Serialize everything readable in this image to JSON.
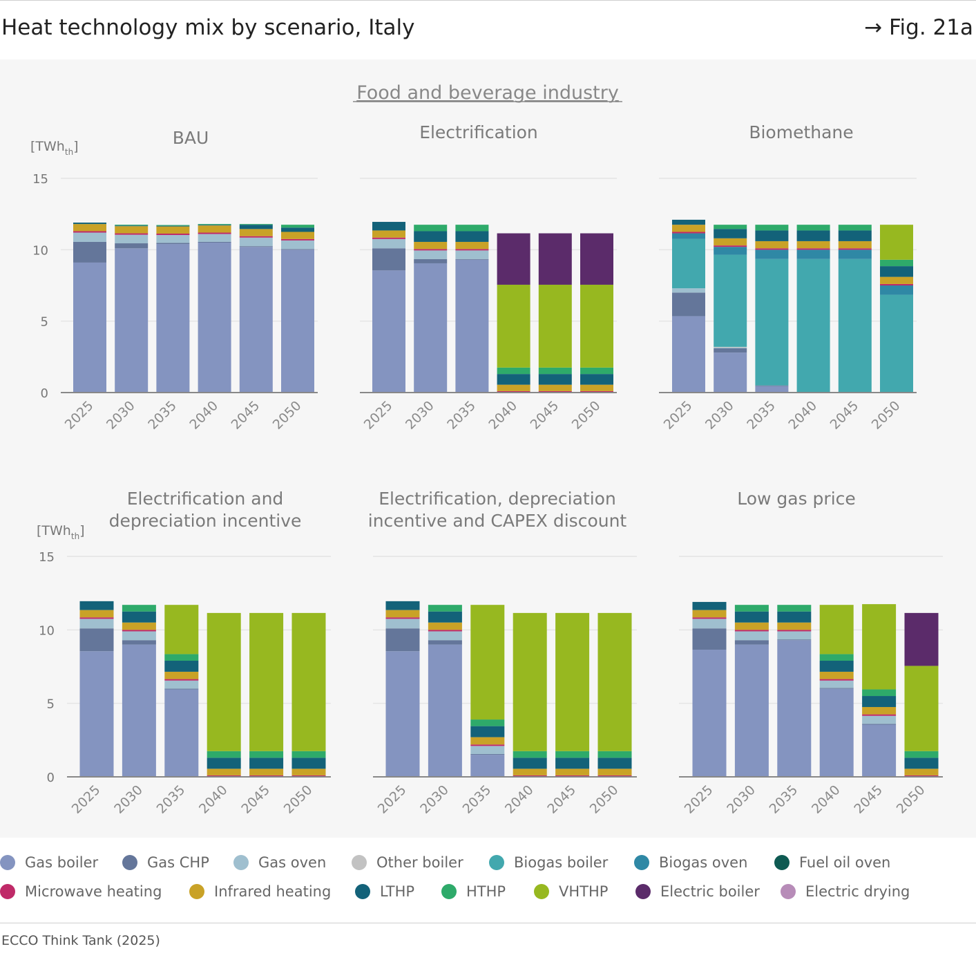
{
  "header": {
    "title": "Heat technology mix by scenario, Italy",
    "fig_label": "→ Fig. 21a"
  },
  "source": "ECCO Think Tank (2025)",
  "chart_data": {
    "type": "bar",
    "stacked": true,
    "section_title": "Food and beverage industry",
    "unit_label": "[TWh",
    "unit_sub": "th",
    "unit_close": "]",
    "ylim": [
      0,
      15
    ],
    "yticks": [
      0,
      5,
      10,
      15
    ],
    "categories": [
      "2025",
      "2030",
      "2035",
      "2040",
      "2045",
      "2050"
    ],
    "technologies": [
      {
        "name": "Gas boiler",
        "color": "#8494c0"
      },
      {
        "name": "Gas CHP",
        "color": "#64769a"
      },
      {
        "name": "Gas oven",
        "color": "#9fbfcf"
      },
      {
        "name": "Other boiler",
        "color": "#c2c2c2"
      },
      {
        "name": "Biogas boiler",
        "color": "#42a8ae"
      },
      {
        "name": "Biogas oven",
        "color": "#2f88a5"
      },
      {
        "name": "Fuel oil oven",
        "color": "#0e5a52"
      },
      {
        "name": "Microwave heating",
        "color": "#bf2a68"
      },
      {
        "name": "Infrared heating",
        "color": "#c9a227"
      },
      {
        "name": "LTHP",
        "color": "#136279"
      },
      {
        "name": "HTHP",
        "color": "#2eaa6a"
      },
      {
        "name": "VHTHP",
        "color": "#97b820"
      },
      {
        "name": "Electric boiler",
        "color": "#5b2b6a"
      },
      {
        "name": "Electric drying",
        "color": "#b78cb8"
      }
    ],
    "charts": [
      {
        "title": [
          "BAU"
        ],
        "series": [
          {
            "name": "Gas boiler",
            "values": [
              9.1,
              10.1,
              10.4,
              10.5,
              10.2,
              10.0
            ]
          },
          {
            "name": "Gas CHP",
            "values": [
              1.45,
              0.35,
              0.08,
              0.05,
              0.05,
              0.05
            ]
          },
          {
            "name": "Gas oven",
            "values": [
              0.65,
              0.6,
              0.55,
              0.55,
              0.6,
              0.6
            ]
          },
          {
            "name": "Other boiler",
            "values": [
              0,
              0,
              0,
              0,
              0,
              0
            ]
          },
          {
            "name": "Biogas boiler",
            "values": [
              0,
              0,
              0,
              0,
              0,
              0
            ]
          },
          {
            "name": "Biogas oven",
            "values": [
              0,
              0,
              0,
              0,
              0,
              0
            ]
          },
          {
            "name": "Fuel oil oven",
            "values": [
              0,
              0,
              0,
              0,
              0,
              0
            ]
          },
          {
            "name": "Microwave heating",
            "values": [
              0.1,
              0.1,
              0.1,
              0.1,
              0.1,
              0.1
            ]
          },
          {
            "name": "Infrared heating",
            "values": [
              0.5,
              0.5,
              0.5,
              0.5,
              0.5,
              0.5
            ]
          },
          {
            "name": "LTHP",
            "values": [
              0.1,
              0.05,
              0.05,
              0.05,
              0.3,
              0.3
            ]
          },
          {
            "name": "HTHP",
            "values": [
              0,
              0.05,
              0.05,
              0.05,
              0.05,
              0.2
            ]
          },
          {
            "name": "VHTHP",
            "values": [
              0,
              0,
              0,
              0,
              0,
              0
            ]
          },
          {
            "name": "Electric boiler",
            "values": [
              0,
              0,
              0,
              0,
              0,
              0
            ]
          },
          {
            "name": "Electric drying",
            "values": [
              0,
              0,
              0,
              0,
              0,
              0
            ]
          }
        ]
      },
      {
        "title": [
          "Electrification"
        ],
        "series": [
          {
            "name": "Gas boiler",
            "values": [
              8.55,
              9.05,
              9.3,
              0,
              0,
              0
            ]
          },
          {
            "name": "Gas CHP",
            "values": [
              1.55,
              0.3,
              0.05,
              0,
              0,
              0
            ]
          },
          {
            "name": "Gas oven",
            "values": [
              0.65,
              0.6,
              0.6,
              0,
              0,
              0
            ]
          },
          {
            "name": "Other boiler",
            "values": [
              0,
              0,
              0,
              0,
              0,
              0
            ]
          },
          {
            "name": "Biogas boiler",
            "values": [
              0,
              0,
              0,
              0,
              0,
              0
            ]
          },
          {
            "name": "Biogas oven",
            "values": [
              0,
              0,
              0,
              0,
              0,
              0
            ]
          },
          {
            "name": "Fuel oil oven",
            "values": [
              0,
              0,
              0,
              0,
              0,
              0
            ]
          },
          {
            "name": "Microwave heating",
            "values": [
              0.1,
              0.1,
              0.1,
              0.1,
              0.1,
              0.1
            ]
          },
          {
            "name": "Infrared heating",
            "values": [
              0.5,
              0.5,
              0.5,
              0.45,
              0.45,
              0.45
            ]
          },
          {
            "name": "LTHP",
            "values": [
              0.6,
              0.75,
              0.75,
              0.75,
              0.75,
              0.75
            ]
          },
          {
            "name": "HTHP",
            "values": [
              0,
              0.45,
              0.45,
              0.45,
              0.45,
              0.45
            ]
          },
          {
            "name": "VHTHP",
            "values": [
              0,
              0,
              0,
              5.8,
              5.8,
              5.8
            ]
          },
          {
            "name": "Electric boiler",
            "values": [
              0,
              0,
              0,
              3.6,
              3.6,
              3.6
            ]
          },
          {
            "name": "Electric drying",
            "values": [
              0,
              0,
              0,
              0,
              0,
              0
            ]
          }
        ]
      },
      {
        "title": [
          "Biomethane"
        ],
        "series": [
          {
            "name": "Gas boiler",
            "values": [
              5.35,
              2.8,
              0.45,
              0,
              0,
              0
            ]
          },
          {
            "name": "Gas CHP",
            "values": [
              1.65,
              0.3,
              0.05,
              0,
              0,
              0
            ]
          },
          {
            "name": "Gas oven",
            "values": [
              0.3,
              0.05,
              0,
              0,
              0,
              0
            ]
          },
          {
            "name": "Other boiler",
            "values": [
              0,
              0.05,
              0,
              0,
              0,
              0
            ]
          },
          {
            "name": "Biogas boiler",
            "values": [
              3.45,
              6.45,
              8.85,
              9.35,
              9.35,
              6.85
            ]
          },
          {
            "name": "Biogas oven",
            "values": [
              0.4,
              0.55,
              0.65,
              0.65,
              0.65,
              0.65
            ]
          },
          {
            "name": "Fuel oil oven",
            "values": [
              0,
              0,
              0,
              0,
              0,
              0
            ]
          },
          {
            "name": "Microwave heating",
            "values": [
              0.1,
              0.1,
              0.1,
              0.1,
              0.1,
              0.1
            ]
          },
          {
            "name": "Infrared heating",
            "values": [
              0.5,
              0.5,
              0.5,
              0.5,
              0.5,
              0.5
            ]
          },
          {
            "name": "LTHP",
            "values": [
              0.35,
              0.65,
              0.75,
              0.75,
              0.75,
              0.75
            ]
          },
          {
            "name": "HTHP",
            "values": [
              0,
              0.3,
              0.4,
              0.4,
              0.4,
              0.45
            ]
          },
          {
            "name": "VHTHP",
            "values": [
              0,
              0,
              0,
              0,
              0,
              2.45
            ]
          },
          {
            "name": "Electric boiler",
            "values": [
              0,
              0,
              0,
              0,
              0,
              0
            ]
          },
          {
            "name": "Electric drying",
            "values": [
              0,
              0,
              0,
              0,
              0,
              0
            ]
          }
        ]
      },
      {
        "title": [
          "Electrification and",
          "depreciation incentive"
        ],
        "series": [
          {
            "name": "Gas boiler",
            "values": [
              8.55,
              9.0,
              5.95,
              0,
              0,
              0
            ]
          },
          {
            "name": "Gas CHP",
            "values": [
              1.55,
              0.3,
              0.05,
              0,
              0,
              0
            ]
          },
          {
            "name": "Gas oven",
            "values": [
              0.65,
              0.6,
              0.55,
              0,
              0,
              0
            ]
          },
          {
            "name": "Other boiler",
            "values": [
              0,
              0,
              0,
              0,
              0,
              0
            ]
          },
          {
            "name": "Biogas boiler",
            "values": [
              0,
              0,
              0,
              0,
              0,
              0
            ]
          },
          {
            "name": "Biogas oven",
            "values": [
              0,
              0,
              0,
              0,
              0,
              0
            ]
          },
          {
            "name": "Fuel oil oven",
            "values": [
              0,
              0,
              0,
              0,
              0,
              0
            ]
          },
          {
            "name": "Microwave heating",
            "values": [
              0.1,
              0.1,
              0.1,
              0.1,
              0.1,
              0.1
            ]
          },
          {
            "name": "Infrared heating",
            "values": [
              0.5,
              0.5,
              0.5,
              0.45,
              0.45,
              0.45
            ]
          },
          {
            "name": "LTHP",
            "values": [
              0.6,
              0.75,
              0.75,
              0.75,
              0.75,
              0.75
            ]
          },
          {
            "name": "HTHP",
            "values": [
              0,
              0.45,
              0.45,
              0.45,
              0.45,
              0.45
            ]
          },
          {
            "name": "VHTHP",
            "values": [
              0,
              0,
              3.35,
              9.4,
              9.4,
              9.4
            ]
          },
          {
            "name": "Electric boiler",
            "values": [
              0,
              0,
              0,
              0,
              0,
              0
            ]
          },
          {
            "name": "Electric drying",
            "values": [
              0,
              0,
              0,
              0,
              0,
              0
            ]
          }
        ]
      },
      {
        "title": [
          "Electrification, depreciation",
          "incentive and CAPEX discount"
        ],
        "series": [
          {
            "name": "Gas boiler",
            "values": [
              8.55,
              9.0,
              1.5,
              0,
              0,
              0
            ]
          },
          {
            "name": "Gas CHP",
            "values": [
              1.55,
              0.3,
              0.05,
              0,
              0,
              0
            ]
          },
          {
            "name": "Gas oven",
            "values": [
              0.65,
              0.6,
              0.55,
              0,
              0,
              0
            ]
          },
          {
            "name": "Other boiler",
            "values": [
              0,
              0,
              0,
              0,
              0,
              0
            ]
          },
          {
            "name": "Biogas boiler",
            "values": [
              0,
              0,
              0,
              0,
              0,
              0
            ]
          },
          {
            "name": "Biogas oven",
            "values": [
              0,
              0,
              0,
              0,
              0,
              0
            ]
          },
          {
            "name": "Fuel oil oven",
            "values": [
              0,
              0,
              0,
              0,
              0,
              0
            ]
          },
          {
            "name": "Microwave heating",
            "values": [
              0.1,
              0.1,
              0.1,
              0.1,
              0.1,
              0.1
            ]
          },
          {
            "name": "Infrared heating",
            "values": [
              0.5,
              0.5,
              0.5,
              0.45,
              0.45,
              0.45
            ]
          },
          {
            "name": "LTHP",
            "values": [
              0.6,
              0.75,
              0.75,
              0.75,
              0.75,
              0.75
            ]
          },
          {
            "name": "HTHP",
            "values": [
              0,
              0.45,
              0.45,
              0.45,
              0.45,
              0.45
            ]
          },
          {
            "name": "VHTHP",
            "values": [
              0,
              0,
              7.8,
              9.4,
              9.4,
              9.4
            ]
          },
          {
            "name": "Electric boiler",
            "values": [
              0,
              0,
              0,
              0,
              0,
              0
            ]
          },
          {
            "name": "Electric drying",
            "values": [
              0,
              0,
              0,
              0,
              0,
              0
            ]
          }
        ]
      },
      {
        "title": [
          "Low gas price"
        ],
        "series": [
          {
            "name": "Gas boiler",
            "values": [
              8.65,
              9.0,
              9.3,
              6.0,
              3.55,
              0
            ]
          },
          {
            "name": "Gas CHP",
            "values": [
              1.45,
              0.3,
              0.05,
              0.05,
              0.05,
              0
            ]
          },
          {
            "name": "Gas oven",
            "values": [
              0.65,
              0.6,
              0.55,
              0.5,
              0.55,
              0
            ]
          },
          {
            "name": "Other boiler",
            "values": [
              0,
              0,
              0,
              0,
              0,
              0
            ]
          },
          {
            "name": "Biogas boiler",
            "values": [
              0,
              0,
              0,
              0,
              0,
              0
            ]
          },
          {
            "name": "Biogas oven",
            "values": [
              0,
              0,
              0,
              0,
              0,
              0
            ]
          },
          {
            "name": "Fuel oil oven",
            "values": [
              0,
              0,
              0,
              0,
              0,
              0
            ]
          },
          {
            "name": "Microwave heating",
            "values": [
              0.1,
              0.1,
              0.1,
              0.1,
              0.1,
              0.1
            ]
          },
          {
            "name": "Infrared heating",
            "values": [
              0.5,
              0.5,
              0.5,
              0.5,
              0.5,
              0.45
            ]
          },
          {
            "name": "LTHP",
            "values": [
              0.55,
              0.75,
              0.75,
              0.75,
              0.75,
              0.75
            ]
          },
          {
            "name": "HTHP",
            "values": [
              0,
              0.45,
              0.45,
              0.45,
              0.45,
              0.45
            ]
          },
          {
            "name": "VHTHP",
            "values": [
              0,
              0,
              0,
              3.35,
              5.8,
              5.8
            ]
          },
          {
            "name": "Electric boiler",
            "values": [
              0,
              0,
              0,
              0,
              0,
              3.6
            ]
          },
          {
            "name": "Electric drying",
            "values": [
              0,
              0,
              0,
              0,
              0,
              0
            ]
          }
        ]
      }
    ]
  }
}
